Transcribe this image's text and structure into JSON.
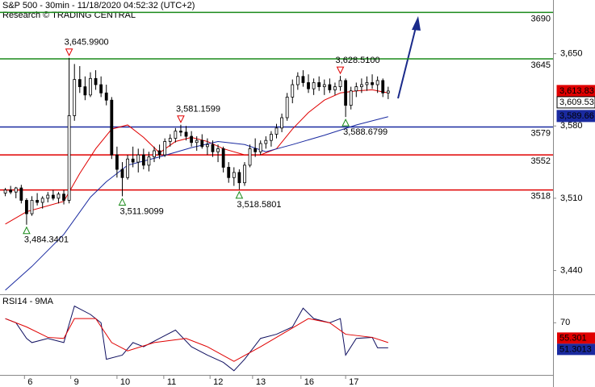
{
  "chart_data": {
    "type": "candlestick",
    "title": "S&P 500 - 30min - 11/18/2020 04:52:32 (UTC+2)",
    "subtitle": "Research © TRADING CENTRAL",
    "xlim": [
      -1,
      103
    ],
    "ylim": [
      3417,
      3702
    ],
    "yticks": [
      {
        "value": 3650,
        "label": "3,650"
      },
      {
        "value": 3580,
        "label": "3,580"
      },
      {
        "value": 3510,
        "label": "3,510"
      },
      {
        "value": 3440,
        "label": "3,440"
      }
    ],
    "xticks": [
      {
        "value": 3.6,
        "label": "6"
      },
      {
        "value": 12.3,
        "label": "9"
      },
      {
        "value": 21,
        "label": "10"
      },
      {
        "value": 29.8,
        "label": "11"
      },
      {
        "value": 38.5,
        "label": "12"
      },
      {
        "value": 46.5,
        "label": "13"
      },
      {
        "value": 55.6,
        "label": "16"
      },
      {
        "value": 64,
        "label": "17"
      }
    ],
    "ohlc": [
      [
        3515,
        3520,
        3512,
        3518
      ],
      [
        3518,
        3522,
        3514,
        3516
      ],
      [
        3516,
        3521,
        3510,
        3520
      ],
      [
        3520,
        3523,
        3505,
        3508
      ],
      [
        3508,
        3510,
        3484.34,
        3495
      ],
      [
        3495,
        3512,
        3493,
        3508
      ],
      [
        3508,
        3515,
        3503,
        3506
      ],
      [
        3506,
        3512,
        3500,
        3510
      ],
      [
        3510,
        3516,
        3506,
        3513
      ],
      [
        3513,
        3518,
        3508,
        3510
      ],
      [
        3510,
        3516,
        3505,
        3514
      ],
      [
        3514,
        3518,
        3504,
        3508
      ],
      [
        3508,
        3645.99,
        3505,
        3590
      ],
      [
        3590,
        3640,
        3585,
        3625
      ],
      [
        3625,
        3638,
        3612,
        3618
      ],
      [
        3618,
        3628,
        3605,
        3610
      ],
      [
        3610,
        3632,
        3608,
        3626
      ],
      [
        3626,
        3634,
        3615,
        3620
      ],
      [
        3620,
        3628,
        3608,
        3612
      ],
      [
        3612,
        3620,
        3600,
        3605
      ],
      [
        3605,
        3608,
        3548,
        3552
      ],
      [
        3552,
        3560,
        3530,
        3538
      ],
      [
        3538,
        3545,
        3511.91,
        3530
      ],
      [
        3530,
        3552,
        3528,
        3548
      ],
      [
        3548,
        3560,
        3540,
        3545
      ],
      [
        3545,
        3558,
        3535,
        3552
      ],
      [
        3552,
        3558,
        3538,
        3542
      ],
      [
        3542,
        3555,
        3536,
        3550
      ],
      [
        3550,
        3560,
        3545,
        3556
      ],
      [
        3556,
        3562,
        3548,
        3552
      ],
      [
        3552,
        3568,
        3550,
        3565
      ],
      [
        3565,
        3572,
        3560,
        3568
      ],
      [
        3568,
        3578,
        3564,
        3575
      ],
      [
        3575,
        3581.16,
        3570,
        3574
      ],
      [
        3574,
        3580,
        3566,
        3570
      ],
      [
        3570,
        3575,
        3560,
        3564
      ],
      [
        3564,
        3570,
        3556,
        3566
      ],
      [
        3566,
        3572,
        3558,
        3560
      ],
      [
        3560,
        3568,
        3552,
        3562
      ],
      [
        3562,
        3566,
        3550,
        3555
      ],
      [
        3555,
        3562,
        3545,
        3558
      ],
      [
        3558,
        3560,
        3535,
        3540
      ],
      [
        3540,
        3545,
        3525,
        3530
      ],
      [
        3530,
        3540,
        3522,
        3535
      ],
      [
        3535,
        3538,
        3518.58,
        3525
      ],
      [
        3525,
        3545,
        3522,
        3542
      ],
      [
        3542,
        3562,
        3540,
        3558
      ],
      [
        3558,
        3568,
        3550,
        3555
      ],
      [
        3555,
        3566,
        3552,
        3563
      ],
      [
        3563,
        3570,
        3558,
        3566
      ],
      [
        3566,
        3575,
        3560,
        3572
      ],
      [
        3572,
        3582,
        3568,
        3578
      ],
      [
        3578,
        3592,
        3574,
        3588
      ],
      [
        3588,
        3612,
        3585,
        3608
      ],
      [
        3608,
        3625,
        3602,
        3620
      ],
      [
        3620,
        3632,
        3615,
        3628
      ],
      [
        3628,
        3634,
        3618,
        3622
      ],
      [
        3622,
        3630,
        3612,
        3616
      ],
      [
        3616,
        3626,
        3610,
        3622
      ],
      [
        3622,
        3628,
        3614,
        3618
      ],
      [
        3618,
        3625,
        3610,
        3620
      ],
      [
        3620,
        3626,
        3612,
        3615
      ],
      [
        3615,
        3622,
        3610,
        3618
      ],
      [
        3618,
        3628.51,
        3614,
        3624
      ],
      [
        3624,
        3626,
        3588.68,
        3600
      ],
      [
        3600,
        3618,
        3596,
        3614
      ],
      [
        3614,
        3622,
        3608,
        3618
      ],
      [
        3618,
        3626,
        3612,
        3620
      ],
      [
        3620,
        3628,
        3614,
        3622
      ],
      [
        3622,
        3630,
        3616,
        3620
      ],
      [
        3620,
        3628,
        3612,
        3624
      ],
      [
        3624,
        3626,
        3608,
        3612
      ],
      [
        3612,
        3618,
        3606,
        3613.83
      ]
    ],
    "series": [
      {
        "color": "#e00000",
        "x": [
          0,
          4,
          11,
          14,
          17,
          20,
          23,
          26,
          29,
          32,
          35,
          38,
          41,
          45,
          48,
          51,
          54,
          57,
          60,
          63,
          66,
          69,
          72
        ],
        "values": [
          3485,
          3497,
          3507,
          3534,
          3558,
          3577,
          3581,
          3569,
          3554,
          3565,
          3569,
          3565,
          3558,
          3552,
          3552,
          3558,
          3577,
          3593,
          3605,
          3612,
          3614,
          3615,
          3612
        ]
      },
      {
        "color": "#1a2aa0",
        "x": [
          0,
          5,
          11,
          16,
          19,
          23,
          29,
          35,
          40,
          45,
          49,
          54,
          60,
          66,
          72
        ],
        "values": [
          3421,
          3444,
          3475,
          3511,
          3526,
          3542,
          3550,
          3559,
          3565,
          3562,
          3555,
          3562,
          3571,
          3581,
          3589
        ]
      }
    ],
    "levels": [
      {
        "value": 3690,
        "color": "#1a8a1a"
      },
      {
        "value": 3645,
        "color": "#1a8a1a"
      },
      {
        "value": 3579,
        "color": "#1a2aa0"
      },
      {
        "value": 3552,
        "color": "#e00000"
      },
      {
        "value": 3518,
        "color": "#e00000"
      }
    ],
    "annotations": [
      {
        "label": "3,484.3401",
        "index": 4,
        "side": "low"
      },
      {
        "label": "3,645.9900",
        "index": 12,
        "side": "high"
      },
      {
        "label": "3,511.9099",
        "index": 22,
        "side": "low"
      },
      {
        "label": "3,581.1599",
        "index": 33,
        "side": "high"
      },
      {
        "label": "3,518.5801",
        "index": 44,
        "side": "low"
      },
      {
        "label": "3,628.5100",
        "index": 63,
        "side": "high"
      },
      {
        "label": "3,588.6799",
        "index": 64,
        "side": "low"
      }
    ],
    "price_labels": [
      {
        "value": 3613.83,
        "label": "3,613.83",
        "color": "#e00000"
      },
      {
        "value": 3609.53,
        "label": "3,609.53",
        "color": "#000000"
      },
      {
        "value": 3589.66,
        "label": "3,589.66",
        "color": "#1a2aa0"
      }
    ],
    "rsi": {
      "title": "RSI14 - 9MA",
      "ylim": [
        20,
        95
      ],
      "yticks": [
        70
      ],
      "series": [
        {
          "color": "#101060",
          "x": [
            0,
            2,
            4,
            5,
            8,
            11,
            13,
            16,
            18,
            19,
            22,
            24,
            26,
            29,
            32,
            35,
            38,
            41,
            43,
            45,
            48,
            51,
            54,
            56,
            58,
            61,
            63,
            64,
            66,
            69,
            70,
            72
          ],
          "values": [
            74,
            70,
            55,
            51,
            55,
            51,
            86,
            78,
            70,
            35,
            39,
            51,
            47,
            55,
            63,
            47,
            39,
            32,
            24,
            35,
            55,
            59,
            66,
            84,
            74,
            70,
            74,
            39,
            55,
            56,
            46,
            46
          ]
        },
        {
          "color": "#e00000",
          "x": [
            0,
            4,
            8,
            11,
            13,
            17,
            20,
            23,
            28,
            34,
            38,
            43,
            48,
            52,
            57,
            61,
            64,
            69,
            72
          ],
          "values": [
            74,
            66,
            56,
            55,
            74,
            74,
            51,
            43,
            51,
            55,
            47,
            33,
            47,
            59,
            74,
            70,
            59,
            56,
            51
          ]
        }
      ],
      "value_labels": [
        {
          "value": 55.301,
          "label": "55.301",
          "color": "#e00000"
        },
        {
          "value": 51.3013,
          "label": "51.3013",
          "color": "#1a2aa0"
        }
      ]
    }
  }
}
